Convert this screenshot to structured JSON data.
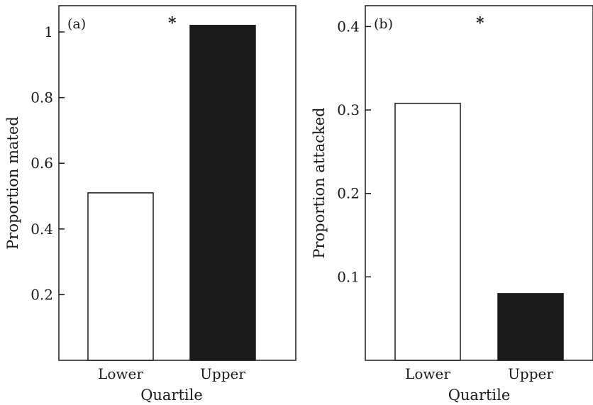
{
  "chart_data": [
    {
      "type": "bar",
      "panel_label": "(a)",
      "significance": "*",
      "categories": [
        "Lower",
        "Upper"
      ],
      "values": [
        0.51,
        1.02
      ],
      "bar_colors": [
        "#ffffff",
        "#1a1a1a"
      ],
      "xlabel": "Quartile",
      "ylabel": "Proportion mated",
      "ylim": [
        0,
        1.08
      ],
      "yticks": [
        0.2,
        0.4,
        0.6,
        0.8,
        1.0
      ],
      "ytick_labels": [
        "0.2",
        "0.4",
        "0.6",
        "0.8",
        "1"
      ],
      "grid": false
    },
    {
      "type": "bar",
      "panel_label": "(b)",
      "significance": "*",
      "categories": [
        "Lower",
        "Upper"
      ],
      "values": [
        0.308,
        0.08
      ],
      "bar_colors": [
        "#ffffff",
        "#1a1a1a"
      ],
      "xlabel": "Quartile",
      "ylabel": "Proportion attacked",
      "ylim": [
        0.0,
        0.425
      ],
      "yticks": [
        0.1,
        0.2,
        0.3,
        0.4
      ],
      "ytick_labels": [
        "0.1",
        "0.2",
        "0.3",
        "0.4"
      ],
      "grid": false
    }
  ]
}
